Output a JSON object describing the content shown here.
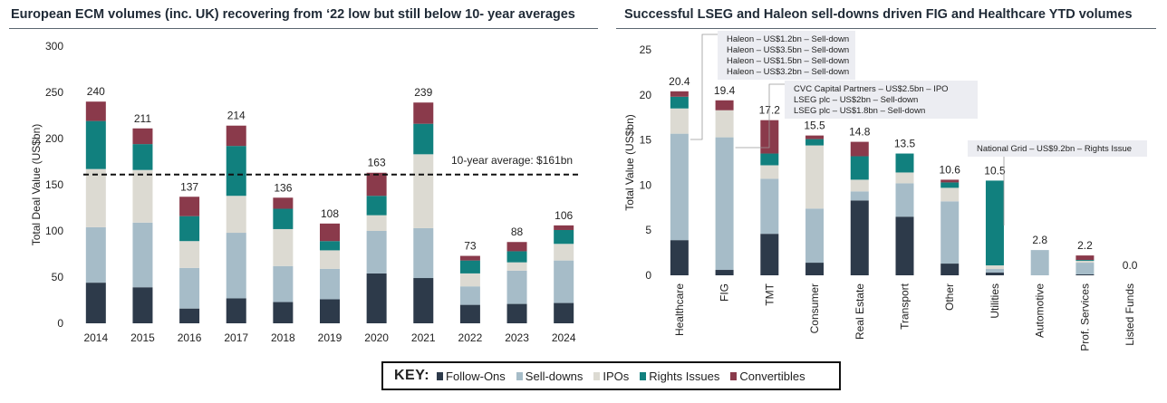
{
  "colors": {
    "follow_ons": "#2d3a4a",
    "sell_downs": "#a6bcc8",
    "ipos": "#dcdad2",
    "rights_issues": "#11807e",
    "convertibles": "#8a3a4b",
    "annotation_box": "#ecedf2",
    "average_line": "#111111"
  },
  "key": {
    "title": "KEY:",
    "items": [
      {
        "label": "Follow-Ons",
        "color": "#2d3a4a"
      },
      {
        "label": "Sell-downs",
        "color": "#a6bcc8"
      },
      {
        "label": "IPOs",
        "color": "#dcdad2"
      },
      {
        "label": "Rights Issues",
        "color": "#11807e"
      },
      {
        "label": "Convertibles",
        "color": "#8a3a4b"
      }
    ]
  },
  "chart_data": [
    {
      "type": "bar",
      "stacked": true,
      "title": "European ECM volumes (inc. UK) recovering from ‘22 low but still below 10- year averages",
      "xlabel": "",
      "ylabel": "Total Deal Value (US$bn)",
      "ylim": [
        0,
        300
      ],
      "yticks": [
        0,
        50,
        100,
        150,
        200,
        250,
        300
      ],
      "categories": [
        "2014",
        "2015",
        "2016",
        "2017",
        "2018",
        "2019",
        "2020",
        "2021",
        "2022",
        "2023",
        "2024"
      ],
      "series": [
        {
          "name": "Follow-Ons",
          "color": "#2d3a4a",
          "values": [
            44,
            39,
            16,
            27,
            23,
            26,
            54,
            49,
            20,
            21,
            22
          ]
        },
        {
          "name": "Sell-downs",
          "color": "#a6bcc8",
          "values": [
            60,
            70,
            44,
            71,
            39,
            33,
            46,
            54,
            20,
            36,
            46
          ]
        },
        {
          "name": "IPOs",
          "color": "#dcdad2",
          "values": [
            63,
            57,
            29,
            40,
            40,
            20,
            17,
            80,
            14,
            9,
            18
          ]
        },
        {
          "name": "Rights Issues",
          "color": "#11807e",
          "values": [
            52,
            28,
            27,
            54,
            22,
            10,
            21,
            33,
            14,
            12,
            15
          ]
        },
        {
          "name": "Convertibles",
          "color": "#8a3a4b",
          "values": [
            21,
            17,
            21,
            22,
            12,
            19,
            25,
            23,
            5,
            10,
            5
          ]
        }
      ],
      "totals": [
        "240",
        "211",
        "137",
        "214",
        "136",
        "108",
        "163",
        "239",
        "73",
        "88",
        "106"
      ],
      "reference_line": {
        "value": 161,
        "label": "10-year average: $161bn"
      }
    },
    {
      "type": "bar",
      "stacked": true,
      "title": "Successful LSEG and Haleon sell-downs driven FIG and Healthcare YTD volumes",
      "xlabel": "",
      "ylabel": "Total Value (US$bn)",
      "ylim": [
        0,
        25
      ],
      "yticks": [
        0,
        5,
        10,
        15,
        20,
        25
      ],
      "categories": [
        "Healthcare",
        "FIG",
        "TMT",
        "Consumer",
        "Real Estate",
        "Transport",
        "Other",
        "Utilities",
        "Automotive",
        "Prof. Services",
        "Listed Funds"
      ],
      "series": [
        {
          "name": "Follow-Ons",
          "color": "#2d3a4a",
          "values": [
            3.9,
            0.6,
            4.6,
            1.4,
            8.3,
            6.5,
            1.3,
            0.3,
            0,
            0.1,
            0
          ]
        },
        {
          "name": "Sell-downs",
          "color": "#a6bcc8",
          "values": [
            11.8,
            14.7,
            6.1,
            6.0,
            1.0,
            3.7,
            6.9,
            0.4,
            2.8,
            1.3,
            0
          ]
        },
        {
          "name": "IPOs",
          "color": "#dcdad2",
          "values": [
            2.8,
            3.0,
            1.5,
            7.0,
            1.3,
            1.2,
            1.5,
            0.4,
            0,
            0.2,
            0
          ]
        },
        {
          "name": "Rights Issues",
          "color": "#11807e",
          "values": [
            1.3,
            0,
            1.3,
            0.7,
            2.6,
            2.1,
            0.6,
            9.4,
            0,
            0.1,
            0
          ]
        },
        {
          "name": "Convertibles",
          "color": "#8a3a4b",
          "values": [
            0.6,
            1.1,
            3.7,
            0.4,
            1.6,
            0,
            0.3,
            0,
            0,
            0.5,
            0
          ]
        }
      ],
      "totals": [
        "20.4",
        "19.4",
        "17.2",
        "15.5",
        "14.8",
        "13.5",
        "10.6",
        "10.5",
        "2.8",
        "2.2",
        "0.0"
      ],
      "annotations": [
        {
          "category": "Healthcare",
          "lines": [
            "Haleon – US$1.2bn – Sell-down",
            "Haleon – US$3.5bn – Sell-down",
            "Haleon – US$1.5bn – Sell-down",
            "Haleon – US$3.2bn – Sell-down"
          ]
        },
        {
          "category": "FIG",
          "lines": [
            "CVC Capital Partners – US$2.5bn – IPO",
            "LSEG plc – US$2bn – Sell-down",
            "LSEG plc – US$1.8bn – Sell-down"
          ]
        },
        {
          "category": "Utilities",
          "lines": [
            "National Grid – US$9.2bn – Rights Issue"
          ]
        }
      ]
    }
  ]
}
